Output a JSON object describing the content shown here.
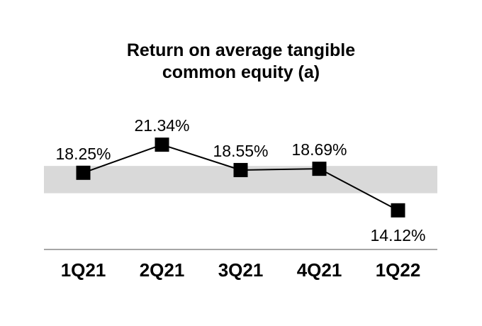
{
  "chart_data": {
    "type": "line",
    "title": "Return on average tangible common equity (a)",
    "title_lines": [
      "Return on average tangible",
      "common equity (a)"
    ],
    "categories": [
      "1Q21",
      "2Q21",
      "3Q21",
      "4Q21",
      "1Q22"
    ],
    "values": [
      18.25,
      21.34,
      18.55,
      18.69,
      14.12
    ],
    "point_labels": [
      "18.25%",
      "21.34%",
      "18.55%",
      "18.69%",
      "14.12%"
    ],
    "label_positions": [
      "above",
      "above",
      "above",
      "above",
      "below"
    ],
    "ylim": [
      12,
      24
    ],
    "highlight_band": {
      "from": 16,
      "to": 19,
      "color": "#d9d9d9"
    },
    "line_color": "#000000",
    "marker": "square",
    "marker_color": "#000000",
    "label_color": "#000000",
    "axis_line_color": "#a6a6a6",
    "background": "#ffffff",
    "grid": false,
    "legend": false
  }
}
